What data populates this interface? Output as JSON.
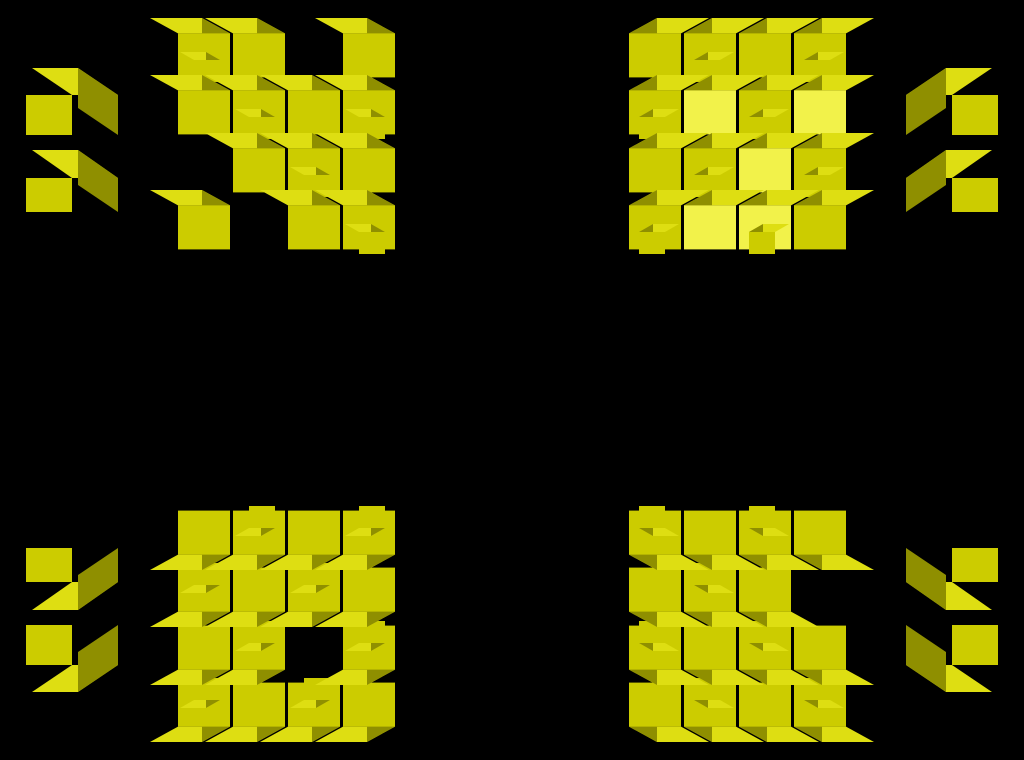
{
  "scene": {
    "background": "#000000",
    "palette": {
      "front": "#cccc00",
      "top": "#dede12",
      "side": "#8f8f00",
      "dark": "#6e6e00",
      "highlight": "#f2f24a"
    }
  }
}
